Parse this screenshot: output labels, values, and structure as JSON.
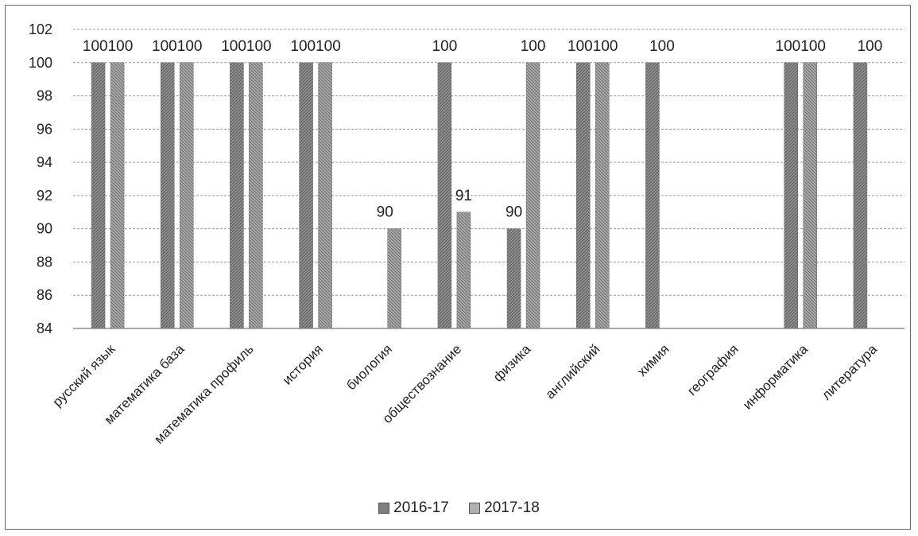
{
  "chart_data": {
    "type": "bar",
    "title": "",
    "xlabel": "",
    "ylabel": "",
    "ylim": [
      84,
      102
    ],
    "yticks": [
      84,
      86,
      88,
      90,
      92,
      94,
      96,
      98,
      100,
      102
    ],
    "grid": true,
    "legend_position": "bottom",
    "categories": [
      "русский язык",
      "математика база",
      "математика профиль",
      "история",
      "биология",
      "обществознание",
      "физика",
      "английский",
      "химия",
      "география",
      "информатика",
      "литература"
    ],
    "series": [
      {
        "name": "2016-17",
        "color": "#8c8c8c",
        "values": [
          100,
          100,
          100,
          100,
          null,
          100,
          90,
          100,
          100,
          null,
          100,
          100
        ]
      },
      {
        "name": "2017-18",
        "color": "#a6a6a6",
        "values": [
          100,
          100,
          100,
          100,
          90,
          91,
          100,
          100,
          null,
          null,
          100,
          null
        ]
      }
    ],
    "data_labels": [
      {
        "category": "русский язык",
        "text": "100100"
      },
      {
        "category": "математика база",
        "text": "100100"
      },
      {
        "category": "математика профиль",
        "text": "100100"
      },
      {
        "category": "история",
        "text": "100100"
      },
      {
        "category": "биология",
        "text": "90"
      },
      {
        "category": "обществознание",
        "text": "100"
      },
      {
        "category": "обществознание",
        "text": "91"
      },
      {
        "category": "физика",
        "text": "90"
      },
      {
        "category": "физика",
        "text": "100"
      },
      {
        "category": "английский",
        "text": "100100"
      },
      {
        "category": "химия",
        "text": "100"
      },
      {
        "category": "информатика",
        "text": "100100"
      },
      {
        "category": "литература",
        "text": "100"
      }
    ]
  }
}
